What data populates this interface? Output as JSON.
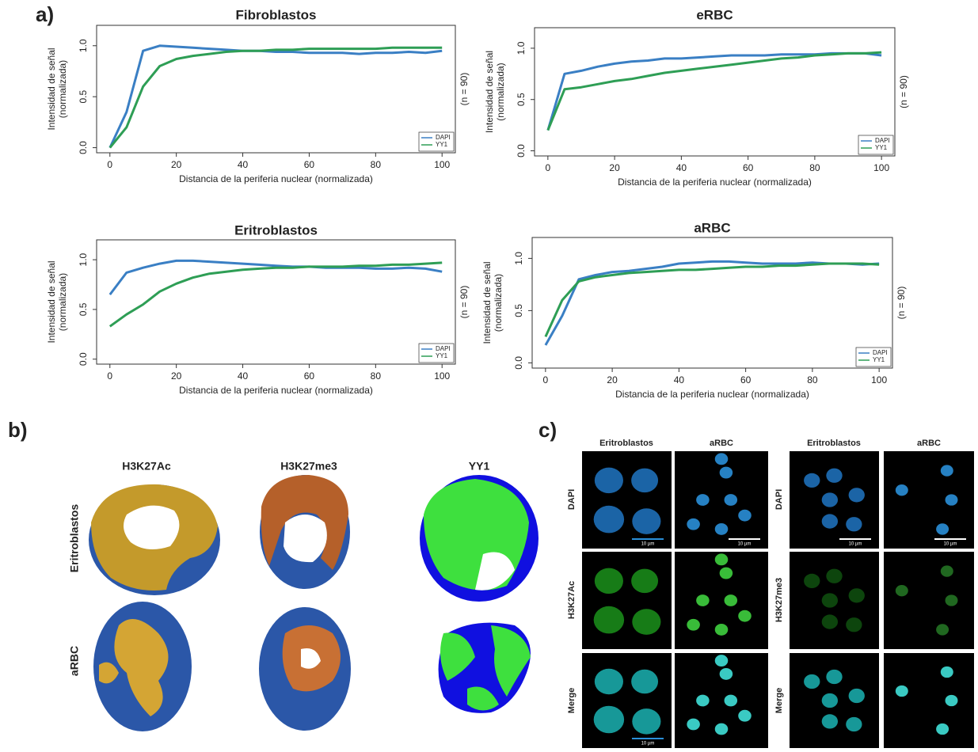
{
  "panel_labels": [
    "a)",
    "b)",
    "c)"
  ],
  "chart_data": [
    {
      "type": "line",
      "title": "Fibroblastos",
      "xlabel": "Distancia de la periferia nuclear (normalizada)",
      "ylabel": [
        "Intensidad de señal",
        "(normalizada)"
      ],
      "note": "(n = 90)",
      "x": [
        0,
        5,
        10,
        15,
        20,
        25,
        30,
        35,
        40,
        45,
        50,
        55,
        60,
        65,
        70,
        75,
        80,
        85,
        90,
        95,
        100
      ],
      "series": [
        {
          "name": "DAPI",
          "color": "#3a7fc4",
          "values": [
            0,
            0.35,
            0.95,
            1,
            0.99,
            0.98,
            0.97,
            0.96,
            0.95,
            0.95,
            0.94,
            0.94,
            0.93,
            0.93,
            0.93,
            0.92,
            0.93,
            0.93,
            0.94,
            0.93,
            0.95
          ]
        },
        {
          "name": "YY1",
          "color": "#2e9e55",
          "values": [
            0,
            0.2,
            0.6,
            0.8,
            0.87,
            0.9,
            0.92,
            0.94,
            0.95,
            0.95,
            0.96,
            0.96,
            0.97,
            0.97,
            0.97,
            0.97,
            0.97,
            0.98,
            0.98,
            0.98,
            0.98
          ]
        }
      ],
      "xlim": [
        -4,
        104
      ],
      "ylim": [
        -0.05,
        1.2
      ],
      "xticks": [
        0,
        20,
        40,
        60,
        80,
        100
      ],
      "yticks": [
        {
          "value": 0,
          "label": "0.0"
        },
        {
          "value": 0.5,
          "label": "0.5"
        },
        {
          "value": 1,
          "label": "1.0"
        }
      ],
      "legend": "bottom-right"
    },
    {
      "type": "line",
      "title": "eRBC",
      "xlabel": "Distancia de la periferia nuclear (normalizada)",
      "ylabel": [
        "Intensidad de señal",
        "(normalizada)"
      ],
      "note": "(n = 90)",
      "x": [
        0,
        5,
        10,
        15,
        20,
        25,
        30,
        35,
        40,
        45,
        50,
        55,
        60,
        65,
        70,
        75,
        80,
        85,
        90,
        95,
        100
      ],
      "series": [
        {
          "name": "DAPI",
          "color": "#3a7fc4",
          "values": [
            0.2,
            0.75,
            0.78,
            0.82,
            0.85,
            0.87,
            0.88,
            0.9,
            0.9,
            0.91,
            0.92,
            0.93,
            0.93,
            0.93,
            0.94,
            0.94,
            0.94,
            0.95,
            0.95,
            0.95,
            0.93
          ]
        },
        {
          "name": "YY1",
          "color": "#2e9e55",
          "values": [
            0.2,
            0.6,
            0.62,
            0.65,
            0.68,
            0.7,
            0.73,
            0.76,
            0.78,
            0.8,
            0.82,
            0.84,
            0.86,
            0.88,
            0.9,
            0.91,
            0.93,
            0.94,
            0.95,
            0.95,
            0.96
          ]
        }
      ],
      "xlim": [
        -4,
        104
      ],
      "ylim": [
        -0.05,
        1.2
      ],
      "xticks": [
        0,
        20,
        40,
        60,
        80,
        100
      ],
      "yticks": [
        {
          "value": 0,
          "label": "0.0"
        },
        {
          "value": 0.5,
          "label": "0.5"
        },
        {
          "value": 1,
          "label": "1.0"
        }
      ],
      "legend": "bottom-right"
    },
    {
      "type": "line",
      "title": "Eritroblastos",
      "xlabel": "Distancia de la periferia nuclear (normalizada)",
      "ylabel": [
        "Intensidad de señal",
        "(normalizada)"
      ],
      "note": "(n = 90)",
      "x": [
        0,
        5,
        10,
        15,
        20,
        25,
        30,
        35,
        40,
        45,
        50,
        55,
        60,
        65,
        70,
        75,
        80,
        85,
        90,
        95,
        100
      ],
      "series": [
        {
          "name": "DAPI",
          "color": "#3a7fc4",
          "values": [
            0.65,
            0.87,
            0.92,
            0.96,
            0.99,
            0.99,
            0.98,
            0.97,
            0.96,
            0.95,
            0.94,
            0.93,
            0.93,
            0.92,
            0.92,
            0.92,
            0.91,
            0.91,
            0.92,
            0.91,
            0.88
          ]
        },
        {
          "name": "YY1",
          "color": "#2e9e55",
          "values": [
            0.33,
            0.45,
            0.55,
            0.68,
            0.76,
            0.82,
            0.86,
            0.88,
            0.9,
            0.91,
            0.92,
            0.92,
            0.93,
            0.93,
            0.93,
            0.94,
            0.94,
            0.95,
            0.95,
            0.96,
            0.97
          ]
        }
      ],
      "xlim": [
        -4,
        104
      ],
      "ylim": [
        -0.05,
        1.2
      ],
      "xticks": [
        0,
        20,
        40,
        60,
        80,
        100
      ],
      "yticks": [
        {
          "value": 0,
          "label": "0.0"
        },
        {
          "value": 0.5,
          "label": "0.5"
        },
        {
          "value": 1,
          "label": "1.0"
        }
      ],
      "legend": "bottom-right"
    },
    {
      "type": "line",
      "title": "aRBC",
      "xlabel": "Distancia de la periferia nuclear (normalizada)",
      "ylabel": [
        "Intensidad de señal",
        "(normalizada)"
      ],
      "note": "(n = 90)",
      "x": [
        0,
        5,
        10,
        15,
        20,
        25,
        30,
        35,
        40,
        45,
        50,
        55,
        60,
        65,
        70,
        75,
        80,
        85,
        90,
        95,
        100
      ],
      "series": [
        {
          "name": "DAPI",
          "color": "#3a7fc4",
          "values": [
            0.17,
            0.45,
            0.8,
            0.84,
            0.87,
            0.88,
            0.9,
            0.92,
            0.95,
            0.96,
            0.97,
            0.97,
            0.96,
            0.95,
            0.95,
            0.95,
            0.96,
            0.95,
            0.95,
            0.94,
            0.95
          ]
        },
        {
          "name": "YY1",
          "color": "#2e9e55",
          "values": [
            0.25,
            0.6,
            0.78,
            0.82,
            0.84,
            0.86,
            0.87,
            0.88,
            0.89,
            0.89,
            0.9,
            0.91,
            0.92,
            0.92,
            0.93,
            0.93,
            0.94,
            0.95,
            0.95,
            0.95,
            0.94
          ]
        }
      ],
      "xlim": [
        -4,
        104
      ],
      "ylim": [
        -0.05,
        1.2
      ],
      "xticks": [
        0,
        20,
        40,
        60,
        80,
        100
      ],
      "yticks": [
        {
          "value": 0,
          "label": "0.0"
        },
        {
          "value": 0.5,
          "label": "0.5"
        },
        {
          "value": 1,
          "label": "1.0"
        }
      ],
      "legend": "bottom-right"
    }
  ],
  "panel_b": {
    "columns": [
      "H3K27Ac",
      "H3K27me3",
      "YY1"
    ],
    "rows": [
      "Eritroblastos",
      "aRBC"
    ]
  },
  "panel_c": {
    "columns": [
      "Eritroblastos",
      "aRBC",
      "Eritroblastos",
      "aRBC"
    ],
    "rows_left": [
      "DAPI",
      "H3K27Ac",
      "Merge"
    ],
    "rows_right": [
      "DAPI",
      "H3K27me3",
      "Merge"
    ],
    "scale_bar": "10 µm"
  }
}
